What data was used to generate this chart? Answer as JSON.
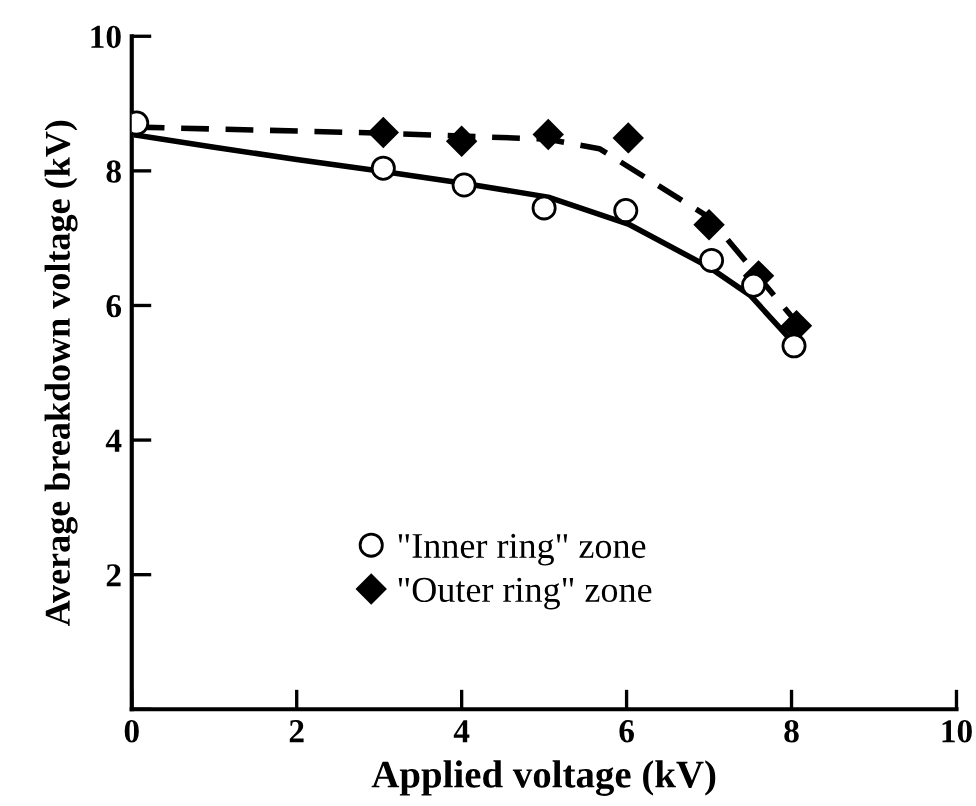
{
  "chart_data": {
    "type": "scatter",
    "xlabel": "Applied voltage (kV)",
    "ylabel": "Average breakdown voltage (kV)",
    "xlim": [
      0,
      10
    ],
    "ylim": [
      0,
      10
    ],
    "xticks": [
      0,
      2,
      4,
      6,
      8,
      10
    ],
    "yticks": [
      {
        "value": 0,
        "label": null
      },
      2,
      4,
      6,
      8,
      10
    ],
    "grid": false,
    "legend": "bottom",
    "series": [
      {
        "name": "\"Inner ring\" zone",
        "marker": "circle",
        "color": "#ffffff",
        "x": [
          0.06,
          3.05,
          4.03,
          5.0,
          5.99,
          7.03,
          7.54,
          8.03
        ],
        "values": [
          8.71,
          8.04,
          7.79,
          7.45,
          7.41,
          6.67,
          6.3,
          5.4
        ]
      },
      {
        "name": "\"Outer ring\" zone",
        "marker": "diamond",
        "color": "#000000",
        "x": [
          3.05,
          4.0,
          5.05,
          6.02,
          7.0,
          7.6,
          8.06
        ],
        "values": [
          8.57,
          8.44,
          8.54,
          8.49,
          7.2,
          6.44,
          5.7
        ]
      },
      {
        "type": "line",
        "line_style": "solid",
        "color": "#000000",
        "x": [
          0.06,
          1.0,
          2.0,
          3.05,
          4.0,
          5.05,
          6.02,
          7.0,
          7.5,
          7.93
        ],
        "values": [
          8.53,
          8.35,
          8.17,
          7.99,
          7.82,
          7.61,
          7.21,
          6.57,
          6.15,
          5.57
        ]
      },
      {
        "type": "line",
        "line_style": "dashed",
        "color": "#000000",
        "x": [
          0.06,
          3.05,
          5.05,
          5.67,
          7.0,
          8.06
        ],
        "values": [
          8.65,
          8.56,
          8.47,
          8.33,
          7.31,
          5.75
        ]
      }
    ]
  }
}
